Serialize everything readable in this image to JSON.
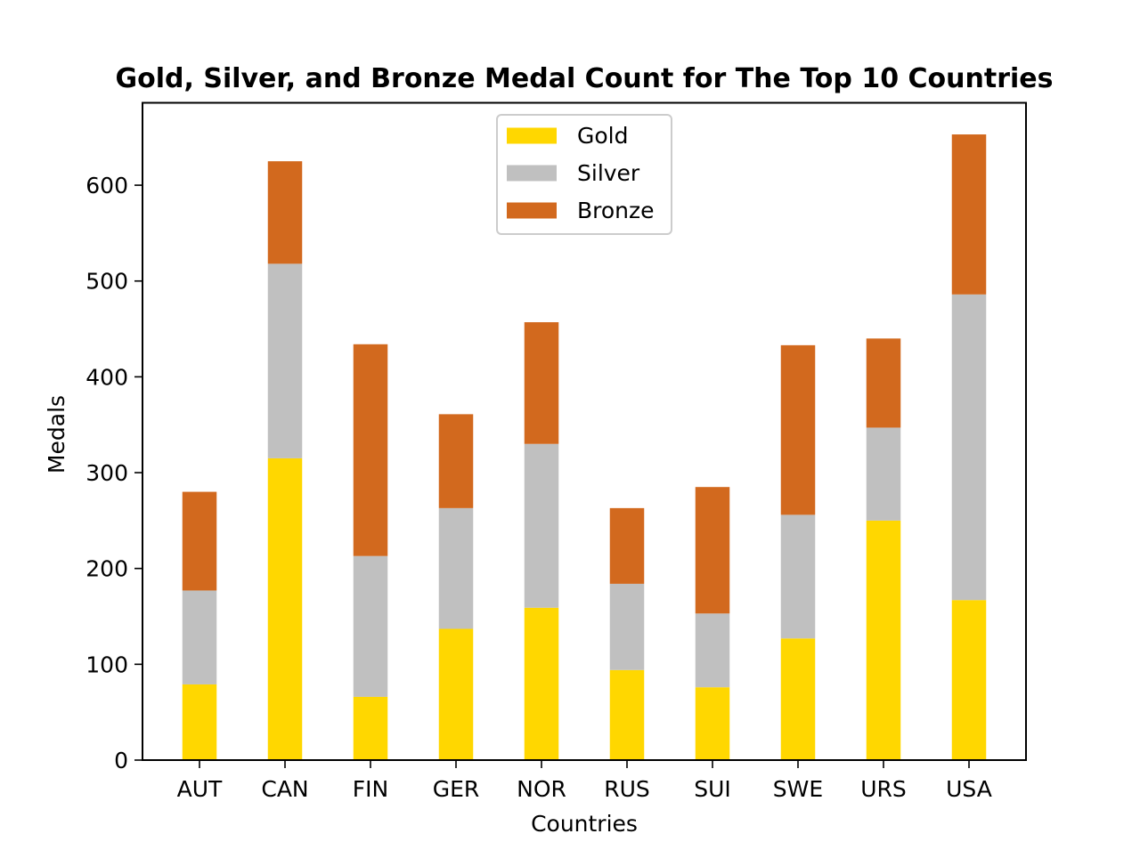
{
  "chart_data": {
    "type": "bar",
    "stacked": true,
    "title": "Gold, Silver, and Bronze Medal Count for The Top 10 Countries",
    "xlabel": "Countries",
    "ylabel": "Medals",
    "categories": [
      "AUT",
      "CAN",
      "FIN",
      "GER",
      "NOR",
      "RUS",
      "SUI",
      "SWE",
      "URS",
      "USA"
    ],
    "series": [
      {
        "name": "Gold",
        "color": "#FFD700",
        "values": [
          79,
          315,
          66,
          137,
          159,
          94,
          76,
          127,
          250,
          167
        ]
      },
      {
        "name": "Silver",
        "color": "#C0C0C0",
        "values": [
          98,
          203,
          147,
          126,
          171,
          90,
          77,
          129,
          97,
          319
        ]
      },
      {
        "name": "Bronze",
        "color": "#D2691E",
        "values": [
          103,
          107,
          221,
          98,
          127,
          79,
          132,
          177,
          93,
          167
        ]
      }
    ],
    "ylim": [
      0,
      686
    ],
    "yticks": [
      0,
      100,
      200,
      300,
      400,
      500,
      600
    ],
    "grid": false,
    "legend_position": "top-center"
  }
}
